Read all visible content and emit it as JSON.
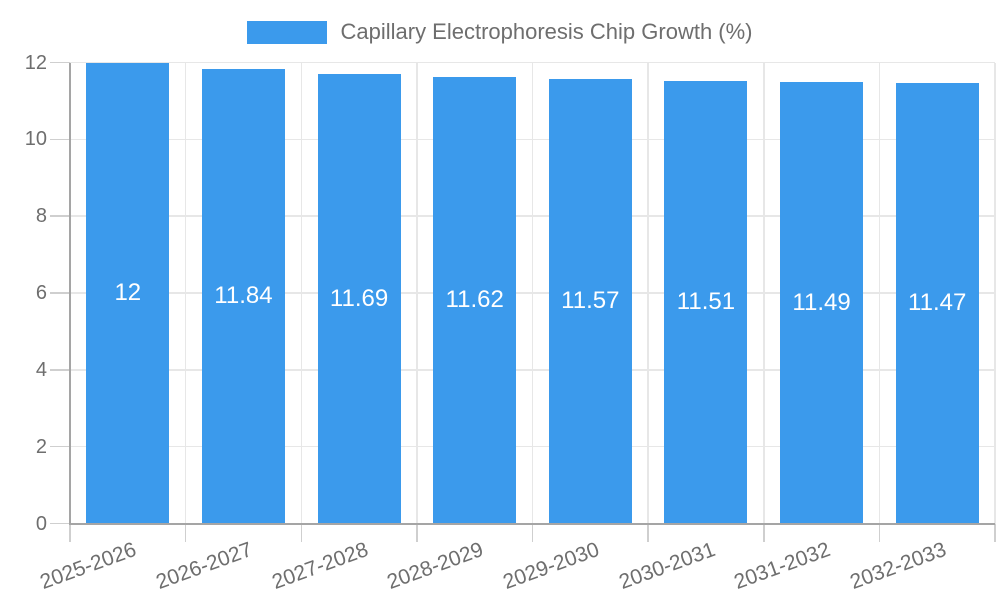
{
  "chart_data": {
    "type": "bar",
    "title": "",
    "legend_label": "Capillary Electrophoresis Chip Growth (%)",
    "legend_position": "top",
    "categories": [
      "2025-2026",
      "2026-2027",
      "2027-2028",
      "2028-2029",
      "2029-2030",
      "2030-2031",
      "2031-2032",
      "2032-2033"
    ],
    "values": [
      12,
      11.84,
      11.69,
      11.62,
      11.57,
      11.51,
      11.49,
      11.47
    ],
    "bar_labels": [
      "12",
      "11.84",
      "11.69",
      "11.62",
      "11.57",
      "11.51",
      "11.49",
      "11.47"
    ],
    "xlabel": "",
    "ylabel": "",
    "ylim": [
      0,
      12
    ],
    "yticks": [
      0,
      2,
      4,
      6,
      8,
      10,
      12
    ],
    "grid": true,
    "x_tick_rotation_deg": -20,
    "colors": {
      "bar": "#3b9aec",
      "bar_label_text": "#ffffff",
      "grid_line": "#e7e7e7",
      "tick_mark": "#cfcfcf",
      "axis_line": "#a5a5a5",
      "tick_text": "#6e6e6e",
      "legend_text": "#6e6e6e",
      "background": "#ffffff"
    }
  }
}
